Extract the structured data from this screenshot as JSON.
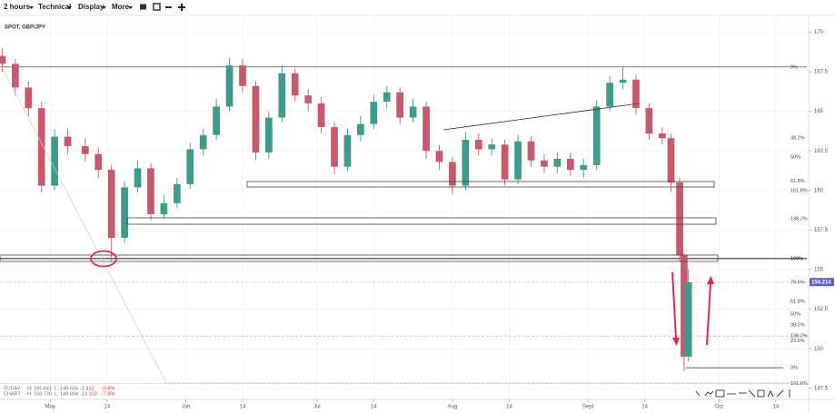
{
  "toolbar": {
    "items": [
      "2 hours",
      "Technical",
      "Display",
      "More"
    ]
  },
  "chart_data": {
    "type": "candlestick",
    "title": "SPOT, GBP/JPY",
    "x": [
      -11,
      -8,
      -5,
      -2,
      1,
      4,
      8,
      11,
      14,
      17,
      20,
      23,
      26,
      29,
      32,
      35,
      38,
      41,
      44,
      47,
      50,
      53,
      56,
      59,
      62,
      65,
      68,
      71,
      74,
      77,
      80,
      83,
      86,
      89,
      92,
      95,
      98,
      101,
      104,
      107,
      110,
      113,
      116,
      119,
      122,
      125,
      128,
      131,
      134,
      137,
      140,
      142,
      144,
      145,
      146
    ],
    "open": [
      168.5,
      168.0,
      166.5,
      165.2,
      160.3,
      163.4,
      162.8,
      162.3,
      161.3,
      157.0,
      160.2,
      161.4,
      158.5,
      159.2,
      160.4,
      162.6,
      163.5,
      165.3,
      167.9,
      166.6,
      162.4,
      164.6,
      167.4,
      166.0,
      165.5,
      164.0,
      161.5,
      163.5,
      164.2,
      165.6,
      166.2,
      164.6,
      165.3,
      162.5,
      161.8,
      160.3,
      163.2,
      162.6,
      162.9,
      160.7,
      163.1,
      161.9,
      161.5,
      162.0,
      161.3,
      161.6,
      165.3,
      166.8,
      167.0,
      165.2,
      163.6,
      163.3,
      160.5,
      155.9,
      149.5
    ],
    "high": [
      169.0,
      168.3,
      166.9,
      165.6,
      163.9,
      163.9,
      163.3,
      162.7,
      161.6,
      160.6,
      161.9,
      161.7,
      159.7,
      160.8,
      163.0,
      163.9,
      165.8,
      168.4,
      168.3,
      166.9,
      165.0,
      167.9,
      167.7,
      166.4,
      165.9,
      164.3,
      163.9,
      164.7,
      166.0,
      166.6,
      166.5,
      165.8,
      165.6,
      162.9,
      162.1,
      163.7,
      163.6,
      163.3,
      163.2,
      163.5,
      163.4,
      162.3,
      162.4,
      162.4,
      162.0,
      165.7,
      167.2,
      167.8,
      167.3,
      165.5,
      164.0,
      163.6,
      160.8,
      156.0,
      155.0
    ],
    "low": [
      167.5,
      166.0,
      164.7,
      159.9,
      160.0,
      162.3,
      161.8,
      160.8,
      155.5,
      156.7,
      159.9,
      158.1,
      158.2,
      158.9,
      160.1,
      162.2,
      163.2,
      165.0,
      166.2,
      161.9,
      162.0,
      164.3,
      165.6,
      165.0,
      163.6,
      161.0,
      161.2,
      163.1,
      163.9,
      165.2,
      164.2,
      164.3,
      162.0,
      161.3,
      159.8,
      160.0,
      162.2,
      162.2,
      160.3,
      160.4,
      161.5,
      161.1,
      161.1,
      160.9,
      160.8,
      161.3,
      165.0,
      166.4,
      164.8,
      163.2,
      162.9,
      159.9,
      155.5,
      148.6,
      149.2
    ],
    "close": [
      168.0,
      166.5,
      165.2,
      160.3,
      163.4,
      162.8,
      162.3,
      161.3,
      157.0,
      160.2,
      161.4,
      158.5,
      159.2,
      160.4,
      162.6,
      163.5,
      165.3,
      167.9,
      166.6,
      162.4,
      164.6,
      167.4,
      166.0,
      165.5,
      164.0,
      161.5,
      163.5,
      164.2,
      165.6,
      166.2,
      164.6,
      165.3,
      162.5,
      161.8,
      160.3,
      163.2,
      162.6,
      162.9,
      160.7,
      163.1,
      161.9,
      161.5,
      162.0,
      161.3,
      161.6,
      165.3,
      166.8,
      167.0,
      165.2,
      163.6,
      163.3,
      160.5,
      155.9,
      149.5,
      154.2
    ],
    "up_color": "#3b9c8e",
    "down_color": "#c9586c",
    "xlim": [
      -11.5,
      173.5
    ],
    "xticks": [
      {
        "value": 0,
        "label": "May"
      },
      {
        "value": 13,
        "label": "14"
      },
      {
        "value": 31,
        "label": "Jun"
      },
      {
        "value": 44,
        "label": "14"
      },
      {
        "value": 61,
        "label": "Jul"
      },
      {
        "value": 74,
        "label": "14"
      },
      {
        "value": 92,
        "label": "Aug"
      },
      {
        "value": 105,
        "label": "14"
      },
      {
        "value": 123,
        "label": "Sept"
      },
      {
        "value": 136,
        "label": "14"
      },
      {
        "value": 153,
        "label": "Oct"
      },
      {
        "value": 166,
        "label": "14"
      }
    ],
    "ylim": [
      146.8,
      171
    ],
    "yticks": [
      147.5,
      150,
      152.5,
      155,
      157.5,
      160,
      162.5,
      165,
      167.5,
      170
    ],
    "grid": true,
    "levels": [
      {
        "value": 167.8,
        "label": "0%",
        "style": "solid"
      },
      {
        "value": 163.3,
        "label": "38.2%",
        "style": "none"
      },
      {
        "value": 162.1,
        "label": "50%",
        "style": "none"
      },
      {
        "value": 160.6,
        "label": "61.8%",
        "style": "none"
      },
      {
        "value": 160.0,
        "label": "161.8%",
        "style": "none"
      },
      {
        "value": 158.2,
        "label": "138.2%",
        "style": "none"
      },
      {
        "value": 155.7,
        "label": "100%",
        "style": "solid",
        "emphasis": true
      },
      {
        "value": 154.2,
        "label": "78.6%",
        "style": "dashed"
      },
      {
        "value": 153.0,
        "label": "61.8%",
        "style": "none"
      },
      {
        "value": 152.2,
        "label": "50%",
        "style": "none"
      },
      {
        "value": 151.5,
        "label": "38.2%",
        "style": "none"
      },
      {
        "value": 150.8,
        "label": "138.2%",
        "style": "dashed"
      },
      {
        "value": 150.5,
        "label": "23.6%",
        "style": "none"
      },
      {
        "value": 148.8,
        "label": "0%",
        "style": "short"
      },
      {
        "value": 147.8,
        "label": "161.8%",
        "style": "dashed"
      }
    ],
    "last_price": 154.214,
    "last_price_color": "#5b5fc7",
    "stats": [
      {
        "name": "TODAY:",
        "high": "H: 155.841",
        "low": "L: 148.604",
        "change": "-1.312",
        "percent": "-0.8%"
      },
      {
        "name": "CHART:",
        "high": "H: 168.730",
        "low": "L: 148.604",
        "change": "-13.103",
        "percent": "-7.8%"
      }
    ]
  }
}
